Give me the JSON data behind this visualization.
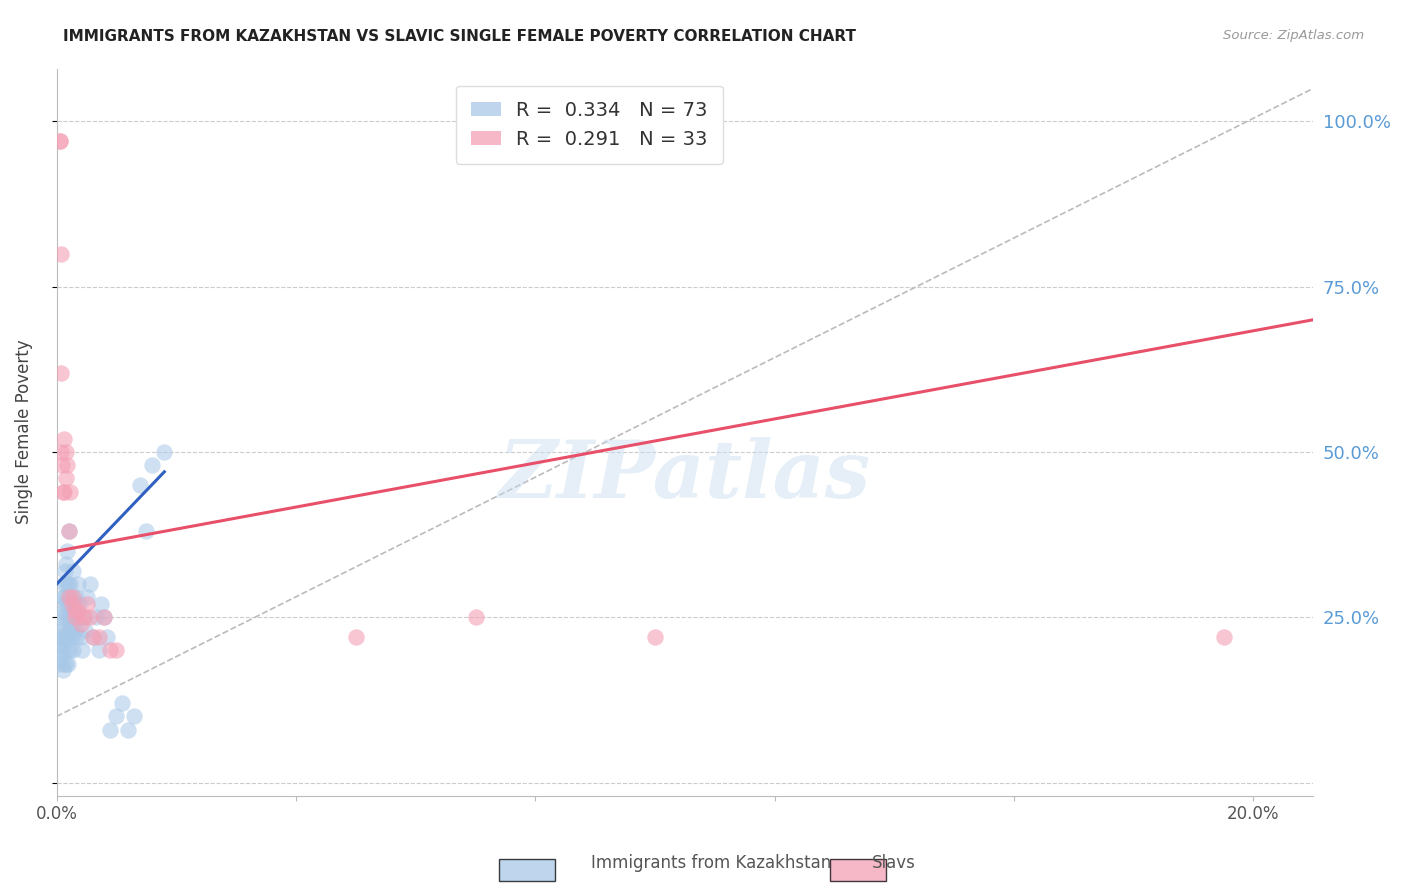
{
  "title": "IMMIGRANTS FROM KAZAKHSTAN VS SLAVIC SINGLE FEMALE POVERTY CORRELATION CHART",
  "source": "Source: ZipAtlas.com",
  "ylabel": "Single Female Poverty",
  "legend_labels": [
    "Immigrants from Kazakhstan",
    "Slavs"
  ],
  "r_blue": 0.334,
  "n_blue": 73,
  "r_pink": 0.291,
  "n_pink": 33,
  "blue_color": "#a8c8e8",
  "pink_color": "#f4a0b5",
  "blue_line_color": "#3060c0",
  "pink_line_color": "#e8506a",
  "watermark": "ZIPatlas",
  "xlim": [
    0.0,
    0.21
  ],
  "ylim": [
    -0.02,
    1.08
  ],
  "figsize": [
    14.06,
    8.92
  ],
  "dpi": 100,
  "blue_x": [
    0.0005,
    0.0006,
    0.0007,
    0.0008,
    0.0008,
    0.0009,
    0.001,
    0.001,
    0.001,
    0.0011,
    0.0011,
    0.0012,
    0.0012,
    0.0012,
    0.0013,
    0.0013,
    0.0014,
    0.0014,
    0.0015,
    0.0015,
    0.0015,
    0.0016,
    0.0016,
    0.0017,
    0.0017,
    0.0018,
    0.0018,
    0.0018,
    0.0019,
    0.0019,
    0.002,
    0.002,
    0.0021,
    0.0021,
    0.0022,
    0.0022,
    0.0023,
    0.0023,
    0.0024,
    0.0025,
    0.0025,
    0.0026,
    0.0027,
    0.0028,
    0.0029,
    0.003,
    0.0031,
    0.0032,
    0.0033,
    0.0035,
    0.0037,
    0.0038,
    0.004,
    0.0042,
    0.0045,
    0.0048,
    0.005,
    0.0055,
    0.006,
    0.0065,
    0.007,
    0.0075,
    0.008,
    0.0085,
    0.009,
    0.01,
    0.011,
    0.012,
    0.013,
    0.014,
    0.015,
    0.016,
    0.018
  ],
  "blue_y": [
    0.2,
    0.18,
    0.22,
    0.19,
    0.25,
    0.21,
    0.28,
    0.23,
    0.17,
    0.22,
    0.2,
    0.3,
    0.26,
    0.18,
    0.28,
    0.24,
    0.32,
    0.27,
    0.22,
    0.3,
    0.18,
    0.25,
    0.33,
    0.2,
    0.27,
    0.35,
    0.28,
    0.22,
    0.3,
    0.18,
    0.25,
    0.23,
    0.38,
    0.22,
    0.27,
    0.2,
    0.23,
    0.3,
    0.25,
    0.22,
    0.28,
    0.24,
    0.2,
    0.32,
    0.27,
    0.25,
    0.23,
    0.28,
    0.22,
    0.3,
    0.25,
    0.27,
    0.22,
    0.2,
    0.25,
    0.23,
    0.28,
    0.3,
    0.22,
    0.25,
    0.2,
    0.27,
    0.25,
    0.22,
    0.08,
    0.1,
    0.12,
    0.08,
    0.1,
    0.45,
    0.38,
    0.48,
    0.5
  ],
  "pink_x": [
    0.0005,
    0.0006,
    0.0007,
    0.0008,
    0.0009,
    0.001,
    0.0012,
    0.0013,
    0.0015,
    0.0016,
    0.0018,
    0.002,
    0.0022,
    0.0025,
    0.0028,
    0.003,
    0.0035,
    0.004,
    0.0045,
    0.005,
    0.0055,
    0.006,
    0.007,
    0.008,
    0.009,
    0.01,
    0.003,
    0.002,
    0.0008,
    0.05,
    0.07,
    0.1,
    0.195
  ],
  "pink_y": [
    0.97,
    0.97,
    0.62,
    0.5,
    0.48,
    0.44,
    0.52,
    0.44,
    0.5,
    0.46,
    0.48,
    0.38,
    0.44,
    0.27,
    0.28,
    0.26,
    0.26,
    0.24,
    0.25,
    0.27,
    0.25,
    0.22,
    0.22,
    0.25,
    0.2,
    0.2,
    0.25,
    0.28,
    0.8,
    0.22,
    0.25,
    0.22,
    0.22
  ],
  "pink_line_x0": 0.0,
  "pink_line_y0": 0.35,
  "pink_line_x1": 0.21,
  "pink_line_y1": 0.7,
  "blue_line_x0": 0.0,
  "blue_line_y0": 0.3,
  "blue_line_x1": 0.018,
  "blue_line_y1": 0.47,
  "ref_line_x0": 0.0,
  "ref_line_y0": 0.1,
  "ref_line_x1": 0.21,
  "ref_line_y1": 1.05
}
